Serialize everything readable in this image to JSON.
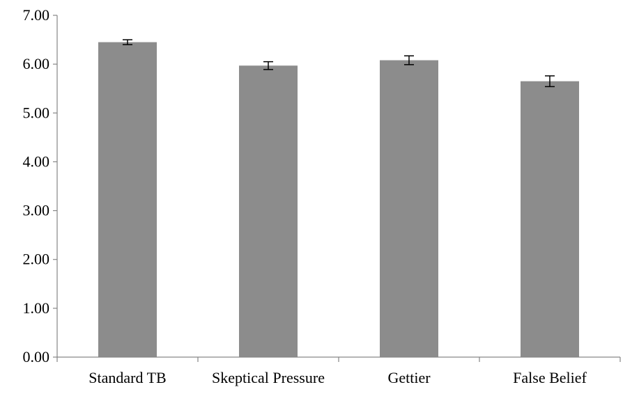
{
  "chart_data": {
    "type": "bar",
    "title": "",
    "xlabel": "",
    "ylabel": "",
    "categories": [
      "Standard TB",
      "Skeptical Pressure",
      "Gettier",
      "False Belief"
    ],
    "values": [
      6.45,
      5.97,
      6.08,
      5.65
    ],
    "error": [
      0.05,
      0.08,
      0.09,
      0.11
    ],
    "ylim": [
      0,
      7
    ],
    "yticks": [
      "0.00",
      "1.00",
      "2.00",
      "3.00",
      "4.00",
      "5.00",
      "6.00",
      "7.00"
    ],
    "bar_color": "#8c8c8c",
    "axis_color": "#868686",
    "grid": false,
    "legend": "none"
  }
}
